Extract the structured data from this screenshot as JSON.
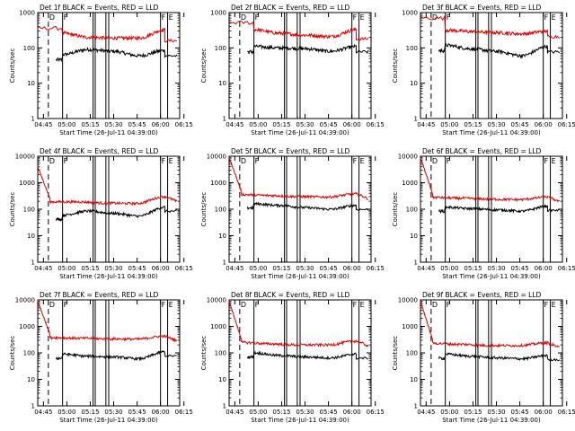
{
  "figure": {
    "background": "#ffffff",
    "axis_color": "#000000"
  },
  "colors": {
    "events": "#000000",
    "lld": "#e00000"
  },
  "chart_data": [
    {
      "type": "line",
      "title": "Det 1f BLACK = Events, RED = LLD",
      "xlabel": "Start Time (26-Jul-11 04:39:00)",
      "ylabel": "Counts/sec",
      "y_scale": "log",
      "ylim": [
        1,
        1000
      ],
      "y_ticks": [
        1,
        10,
        100,
        1000
      ],
      "y_tick_labels": [
        "1",
        "10",
        "100",
        "1000"
      ],
      "xlim": [
        0,
        100
      ],
      "x_tick_labels": [
        "04:45",
        "05:00",
        "05:15",
        "05:30",
        "05:45",
        "06:00",
        "06:15"
      ],
      "series": [
        {
          "name": "Events",
          "color": "#000000",
          "profile": "dip",
          "start": 5,
          "end": 0,
          "values": [
            65,
            90,
            80,
            60,
            85
          ]
        },
        {
          "name": "LLD",
          "color": "#e00000",
          "profile": "dip",
          "start": 360,
          "end": 160,
          "values": [
            260,
            200,
            190,
            190,
            330
          ]
        }
      ],
      "markers": [
        {
          "letter": "D",
          "dashed": true
        },
        {
          "letter": "F",
          "dashed": false
        },
        {
          "letter": "",
          "dashed": false
        },
        {
          "letter": "",
          "dashed": false
        },
        {
          "letter": "",
          "dashed": false
        },
        {
          "letter": "",
          "dashed": false
        },
        {
          "letter": "F",
          "dashed": false
        },
        {
          "letter": "E",
          "dashed": false
        }
      ]
    },
    {
      "type": "line",
      "title": "Det 2f BLACK = Events, RED = LLD",
      "xlabel": "Start Time (26-Jul-11 04:39:00)",
      "ylabel": "Counts/sec",
      "y_scale": "log",
      "ylim": [
        1,
        1000
      ],
      "y_ticks": [
        1,
        10,
        100,
        1000
      ],
      "y_tick_labels": [
        "1",
        "10",
        "100",
        "1000"
      ],
      "xlim": [
        0,
        100
      ],
      "x_tick_labels": [
        "04:45",
        "05:00",
        "05:15",
        "05:30",
        "05:45",
        "06:00",
        "06:15"
      ],
      "series": [
        {
          "name": "Events",
          "color": "#000000",
          "profile": "dip",
          "start": 5,
          "end": 0,
          "values": [
            110,
            100,
            95,
            80,
            110
          ]
        },
        {
          "name": "LLD",
          "color": "#e00000",
          "profile": "dip",
          "start": 520,
          "end": 180,
          "values": [
            330,
            260,
            230,
            210,
            330
          ]
        }
      ],
      "markers": [
        {
          "letter": "D",
          "dashed": true
        },
        {
          "letter": "F",
          "dashed": false
        },
        {
          "letter": "",
          "dashed": false
        },
        {
          "letter": "",
          "dashed": false
        },
        {
          "letter": "",
          "dashed": false
        },
        {
          "letter": "",
          "dashed": false
        },
        {
          "letter": "F",
          "dashed": false
        },
        {
          "letter": "E",
          "dashed": false
        }
      ]
    },
    {
      "type": "line",
      "title": "Det 3f BLACK = Events, RED = LLD",
      "xlabel": "Start Time (26-Jul-11 04:39:00)",
      "ylabel": "Counts/sec",
      "y_scale": "log",
      "ylim": [
        1,
        1000
      ],
      "y_ticks": [
        1,
        10,
        100,
        1000
      ],
      "y_tick_labels": [
        "1",
        "10",
        "100",
        "1000"
      ],
      "xlim": [
        0,
        100
      ],
      "x_tick_labels": [
        "04:45",
        "05:00",
        "05:15",
        "05:30",
        "05:45",
        "06:00",
        "06:15"
      ],
      "series": [
        {
          "name": "Events",
          "color": "#000000",
          "profile": "dip",
          "start": 5,
          "end": 0,
          "values": [
            120,
            95,
            80,
            60,
            110
          ]
        },
        {
          "name": "LLD",
          "color": "#e00000",
          "profile": "dip",
          "start": 700,
          "end": 210,
          "values": [
            320,
            290,
            270,
            250,
            300
          ]
        }
      ],
      "markers": [
        {
          "letter": "D",
          "dashed": true
        },
        {
          "letter": "F",
          "dashed": false
        },
        {
          "letter": "",
          "dashed": false
        },
        {
          "letter": "",
          "dashed": false
        },
        {
          "letter": "",
          "dashed": false
        },
        {
          "letter": "",
          "dashed": false
        },
        {
          "letter": "F",
          "dashed": false
        },
        {
          "letter": "E",
          "dashed": false
        }
      ]
    },
    {
      "type": "line",
      "title": "Det 4f BLACK = Events, RED = LLD",
      "xlabel": "Start Time (26-Jul-11 04:39:00)",
      "ylabel": "Counts/sec",
      "y_scale": "log",
      "ylim": [
        1,
        10000
      ],
      "y_ticks": [
        1,
        10,
        100,
        1000,
        10000
      ],
      "y_tick_labels": [
        "1",
        "10",
        "100",
        "1000",
        "10000"
      ],
      "xlim": [
        0,
        100
      ],
      "x_tick_labels": [
        "04:45",
        "05:00",
        "05:15",
        "05:30",
        "05:45",
        "06:00",
        "06:15"
      ],
      "series": [
        {
          "name": "Events",
          "color": "#000000",
          "profile": "dip",
          "start": 5,
          "end": 0,
          "values": [
            60,
            85,
            70,
            55,
            120
          ]
        },
        {
          "name": "LLD",
          "color": "#e00000",
          "profile": "decay",
          "start": 4000,
          "end": 140,
          "values": [
            190,
            190,
            170,
            165,
            300
          ]
        }
      ],
      "markers": [
        {
          "letter": "D",
          "dashed": true
        },
        {
          "letter": "F",
          "dashed": false
        },
        {
          "letter": "",
          "dashed": false
        },
        {
          "letter": "",
          "dashed": false
        },
        {
          "letter": "",
          "dashed": false
        },
        {
          "letter": "",
          "dashed": false
        },
        {
          "letter": "F",
          "dashed": false
        },
        {
          "letter": "E",
          "dashed": false
        }
      ]
    },
    {
      "type": "line",
      "title": "Det 5f BLACK = Events, RED = LLD",
      "xlabel": "Start Time (26-Jul-11 04:39:00)",
      "ylabel": "Counts/sec",
      "y_scale": "log",
      "ylim": [
        1,
        10000
      ],
      "y_ticks": [
        1,
        10,
        100,
        1000,
        10000
      ],
      "y_tick_labels": [
        "1",
        "10",
        "100",
        "1000",
        "10000"
      ],
      "xlim": [
        0,
        100
      ],
      "x_tick_labels": [
        "04:45",
        "05:00",
        "05:15",
        "05:30",
        "05:45",
        "06:00",
        "06:15"
      ],
      "series": [
        {
          "name": "Events",
          "color": "#000000",
          "profile": "dip",
          "start": 5,
          "end": 0,
          "values": [
            160,
            140,
            115,
            100,
            140
          ]
        },
        {
          "name": "LLD",
          "color": "#e00000",
          "profile": "decay",
          "start": 9000,
          "end": 240,
          "values": [
            360,
            330,
            300,
            290,
            380
          ]
        }
      ],
      "markers": [
        {
          "letter": "D",
          "dashed": true
        },
        {
          "letter": "F",
          "dashed": false
        },
        {
          "letter": "",
          "dashed": false
        },
        {
          "letter": "",
          "dashed": false
        },
        {
          "letter": "",
          "dashed": false
        },
        {
          "letter": "",
          "dashed": false
        },
        {
          "letter": "F",
          "dashed": false
        },
        {
          "letter": "E",
          "dashed": false
        }
      ]
    },
    {
      "type": "line",
      "title": "Det 6f BLACK = Events, RED = LLD",
      "xlabel": "Start Time (26-Jul-11 04:39:00)",
      "ylabel": "Counts/sec",
      "y_scale": "log",
      "ylim": [
        1,
        10000
      ],
      "y_ticks": [
        1,
        10,
        100,
        1000,
        10000
      ],
      "y_tick_labels": [
        "1",
        "10",
        "100",
        "1000",
        "10000"
      ],
      "xlim": [
        0,
        100
      ],
      "x_tick_labels": [
        "04:45",
        "05:00",
        "05:15",
        "05:30",
        "05:45",
        "06:00",
        "06:15"
      ],
      "series": [
        {
          "name": "Events",
          "color": "#000000",
          "profile": "dip",
          "start": 5,
          "end": 0,
          "values": [
            120,
            105,
            95,
            85,
            130
          ]
        },
        {
          "name": "LLD",
          "color": "#e00000",
          "profile": "decay",
          "start": 9000,
          "end": 190,
          "values": [
            280,
            260,
            240,
            230,
            290
          ]
        }
      ],
      "markers": [
        {
          "letter": "D",
          "dashed": true
        },
        {
          "letter": "F",
          "dashed": false
        },
        {
          "letter": "",
          "dashed": false
        },
        {
          "letter": "",
          "dashed": false
        },
        {
          "letter": "",
          "dashed": false
        },
        {
          "letter": "",
          "dashed": false
        },
        {
          "letter": "F",
          "dashed": false
        },
        {
          "letter": "E",
          "dashed": false
        }
      ]
    },
    {
      "type": "line",
      "title": "Det 7f BLACK = Events, RED = LLD",
      "xlabel": "Start Time (26-Jul-11 04:39:00)",
      "ylabel": "Counts/sec",
      "y_scale": "log",
      "ylim": [
        1,
        10000
      ],
      "y_ticks": [
        1,
        10,
        100,
        1000,
        10000
      ],
      "y_tick_labels": [
        "1",
        "10",
        "100",
        "1000",
        "10000"
      ],
      "xlim": [
        0,
        100
      ],
      "x_tick_labels": [
        "04:45",
        "05:00",
        "05:15",
        "05:30",
        "05:45",
        "06:00",
        "06:15"
      ],
      "series": [
        {
          "name": "Events",
          "color": "#000000",
          "profile": "dip",
          "start": 5,
          "end": 0,
          "values": [
            90,
            75,
            70,
            60,
            110
          ]
        },
        {
          "name": "LLD",
          "color": "#e00000",
          "profile": "decay",
          "start": 9000,
          "end": 300,
          "values": [
            380,
            360,
            340,
            330,
            430
          ]
        }
      ],
      "markers": [
        {
          "letter": "D",
          "dashed": true
        },
        {
          "letter": "F",
          "dashed": false
        },
        {
          "letter": "",
          "dashed": false
        },
        {
          "letter": "",
          "dashed": false
        },
        {
          "letter": "",
          "dashed": false
        },
        {
          "letter": "",
          "dashed": false
        },
        {
          "letter": "F",
          "dashed": false
        },
        {
          "letter": "E",
          "dashed": false
        }
      ]
    },
    {
      "type": "line",
      "title": "Det 8f BLACK = Events, RED = LLD",
      "xlabel": "Start Time (26-Jul-11 04:39:00)",
      "ylabel": "Counts/sec",
      "y_scale": "log",
      "ylim": [
        1,
        10000
      ],
      "y_ticks": [
        1,
        10,
        100,
        1000,
        10000
      ],
      "y_tick_labels": [
        "1",
        "10",
        "100",
        "1000",
        "10000"
      ],
      "xlim": [
        0,
        100
      ],
      "x_tick_labels": [
        "04:45",
        "05:00",
        "05:15",
        "05:30",
        "05:45",
        "06:00",
        "06:15"
      ],
      "series": [
        {
          "name": "Events",
          "color": "#000000",
          "profile": "dip",
          "start": 5,
          "end": 0,
          "values": [
            100,
            80,
            70,
            65,
            90
          ]
        },
        {
          "name": "LLD",
          "color": "#e00000",
          "profile": "decay",
          "start": 9000,
          "end": 180,
          "values": [
            250,
            220,
            200,
            200,
            280
          ]
        }
      ],
      "markers": [
        {
          "letter": "D",
          "dashed": true
        },
        {
          "letter": "F",
          "dashed": false
        },
        {
          "letter": "",
          "dashed": false
        },
        {
          "letter": "",
          "dashed": false
        },
        {
          "letter": "",
          "dashed": false
        },
        {
          "letter": "",
          "dashed": false
        },
        {
          "letter": "F",
          "dashed": false
        },
        {
          "letter": "E",
          "dashed": false
        }
      ]
    },
    {
      "type": "line",
      "title": "Det 9f BLACK = Events, RED = LLD",
      "xlabel": "Start Time (26-Jul-11 04:39:00)",
      "ylabel": "Counts/sec",
      "y_scale": "log",
      "ylim": [
        1,
        10000
      ],
      "y_ticks": [
        1,
        10,
        100,
        1000,
        10000
      ],
      "y_tick_labels": [
        "1",
        "10",
        "100",
        "1000",
        "10000"
      ],
      "xlim": [
        0,
        100
      ],
      "x_tick_labels": [
        "04:45",
        "05:00",
        "05:15",
        "05:30",
        "05:45",
        "06:00",
        "06:15"
      ],
      "series": [
        {
          "name": "Events",
          "color": "#000000",
          "profile": "dip",
          "start": 5,
          "end": 0,
          "values": [
            90,
            75,
            65,
            60,
            80
          ]
        },
        {
          "name": "LLD",
          "color": "#e00000",
          "profile": "decay",
          "start": 9000,
          "end": 160,
          "values": [
            230,
            210,
            190,
            190,
            240
          ]
        }
      ],
      "markers": [
        {
          "letter": "D",
          "dashed": true
        },
        {
          "letter": "F",
          "dashed": false
        },
        {
          "letter": "",
          "dashed": false
        },
        {
          "letter": "",
          "dashed": false
        },
        {
          "letter": "",
          "dashed": false
        },
        {
          "letter": "",
          "dashed": false
        },
        {
          "letter": "F",
          "dashed": false
        },
        {
          "letter": "E",
          "dashed": false
        }
      ]
    }
  ]
}
